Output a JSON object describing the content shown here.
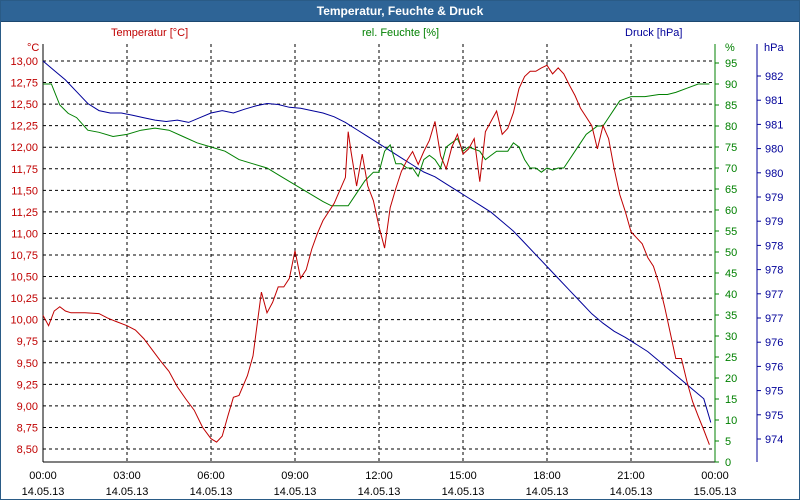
{
  "window": {
    "title": "Temperatur, Feuchte & Druck"
  },
  "chart_data": {
    "type": "line",
    "title": "Temperatur, Feuchte & Druck",
    "colors": {
      "temp": "#c00000",
      "hum": "#008000",
      "press": "#000099",
      "grid": "#000000"
    },
    "x_ticks": [
      {
        "time": "00:00",
        "date": "14.05.13"
      },
      {
        "time": "03:00",
        "date": "14.05.13"
      },
      {
        "time": "06:00",
        "date": "14.05.13"
      },
      {
        "time": "09:00",
        "date": "14.05.13"
      },
      {
        "time": "12:00",
        "date": "14.05.13"
      },
      {
        "time": "15:00",
        "date": "14.05.13"
      },
      {
        "time": "18:00",
        "date": "14.05.13"
      },
      {
        "time": "21:00",
        "date": "14.05.13"
      },
      {
        "time": "00:00",
        "date": "15.05.13"
      }
    ],
    "x_range_hours": [
      0,
      24
    ],
    "axes": {
      "temp": {
        "label": "Temperatur [°C]",
        "unit": "°C",
        "range": [
          8.5,
          13.0
        ],
        "ticks": [
          "13,00",
          "12,75",
          "12,50",
          "12,25",
          "12,00",
          "11,75",
          "11,50",
          "11,25",
          "11,00",
          "10,75",
          "10,50",
          "10,25",
          "10,00",
          "9,75",
          "9,50",
          "9,25",
          "9,00",
          "8,75",
          "8,50"
        ]
      },
      "hum": {
        "label": "rel. Feuchte [%]",
        "unit": "%",
        "range": [
          0,
          95
        ],
        "ticks": [
          "95",
          "90",
          "85",
          "80",
          "75",
          "70",
          "65",
          "60",
          "55",
          "50",
          "45",
          "40",
          "35",
          "30",
          "25",
          "20",
          "15",
          "10",
          "5",
          "0"
        ]
      },
      "press": {
        "label": "Druck [hPa]",
        "unit": "hPa",
        "range": [
          974,
          982
        ],
        "ticks": [
          "982",
          "981",
          "981",
          "980",
          "980",
          "979",
          "979",
          "978",
          "978",
          "977",
          "977",
          "976",
          "976",
          "975",
          "975",
          "974"
        ]
      }
    },
    "series": [
      {
        "name": "Temperatur",
        "unit": "°C",
        "color": "#c00000",
        "points": [
          [
            0,
            10.05
          ],
          [
            0.2,
            9.93
          ],
          [
            0.4,
            10.1
          ],
          [
            0.6,
            10.15
          ],
          [
            0.8,
            10.1
          ],
          [
            1,
            10.08
          ],
          [
            1.5,
            10.08
          ],
          [
            2,
            10.07
          ],
          [
            2.3,
            10.02
          ],
          [
            2.6,
            9.98
          ],
          [
            3,
            9.93
          ],
          [
            3.3,
            9.88
          ],
          [
            3.6,
            9.78
          ],
          [
            3.9,
            9.65
          ],
          [
            4.2,
            9.52
          ],
          [
            4.5,
            9.4
          ],
          [
            4.8,
            9.22
          ],
          [
            5.1,
            9.08
          ],
          [
            5.4,
            8.95
          ],
          [
            5.7,
            8.75
          ],
          [
            6,
            8.62
          ],
          [
            6.2,
            8.58
          ],
          [
            6.4,
            8.65
          ],
          [
            6.6,
            8.88
          ],
          [
            6.8,
            9.1
          ],
          [
            7,
            9.12
          ],
          [
            7.3,
            9.35
          ],
          [
            7.5,
            9.58
          ],
          [
            7.8,
            10.32
          ],
          [
            8,
            10.08
          ],
          [
            8.2,
            10.2
          ],
          [
            8.4,
            10.38
          ],
          [
            8.6,
            10.38
          ],
          [
            8.8,
            10.48
          ],
          [
            9,
            10.8
          ],
          [
            9.2,
            10.48
          ],
          [
            9.4,
            10.58
          ],
          [
            9.6,
            10.82
          ],
          [
            9.8,
            11.0
          ],
          [
            10,
            11.15
          ],
          [
            10.2,
            11.25
          ],
          [
            10.4,
            11.35
          ],
          [
            10.6,
            11.5
          ],
          [
            10.8,
            11.65
          ],
          [
            10.9,
            12.18
          ],
          [
            11,
            11.95
          ],
          [
            11.2,
            11.55
          ],
          [
            11.4,
            11.92
          ],
          [
            11.6,
            11.55
          ],
          [
            11.8,
            11.38
          ],
          [
            12,
            11.08
          ],
          [
            12.2,
            10.83
          ],
          [
            12.4,
            11.3
          ],
          [
            12.6,
            11.52
          ],
          [
            12.8,
            11.72
          ],
          [
            13,
            11.85
          ],
          [
            13.2,
            11.95
          ],
          [
            13.4,
            11.8
          ],
          [
            13.6,
            11.95
          ],
          [
            13.8,
            12.08
          ],
          [
            14,
            12.3
          ],
          [
            14.2,
            11.9
          ],
          [
            14.4,
            11.75
          ],
          [
            14.6,
            12.0
          ],
          [
            14.8,
            12.15
          ],
          [
            15,
            11.92
          ],
          [
            15.2,
            11.98
          ],
          [
            15.4,
            12.1
          ],
          [
            15.6,
            11.6
          ],
          [
            15.8,
            12.18
          ],
          [
            16,
            12.3
          ],
          [
            16.2,
            12.42
          ],
          [
            16.4,
            12.15
          ],
          [
            16.6,
            12.22
          ],
          [
            16.8,
            12.4
          ],
          [
            17,
            12.68
          ],
          [
            17.2,
            12.82
          ],
          [
            17.4,
            12.88
          ],
          [
            17.6,
            12.88
          ],
          [
            17.8,
            12.92
          ],
          [
            18,
            12.95
          ],
          [
            18.2,
            12.85
          ],
          [
            18.4,
            12.92
          ],
          [
            18.6,
            12.85
          ],
          [
            18.8,
            12.72
          ],
          [
            19,
            12.6
          ],
          [
            19.2,
            12.45
          ],
          [
            19.4,
            12.35
          ],
          [
            19.6,
            12.25
          ],
          [
            19.8,
            11.98
          ],
          [
            20,
            12.25
          ],
          [
            20.2,
            12.1
          ],
          [
            20.4,
            11.75
          ],
          [
            20.6,
            11.45
          ],
          [
            20.8,
            11.25
          ],
          [
            21,
            11.02
          ],
          [
            21.2,
            10.95
          ],
          [
            21.4,
            10.88
          ],
          [
            21.6,
            10.72
          ],
          [
            21.8,
            10.62
          ],
          [
            22,
            10.42
          ],
          [
            22.2,
            10.15
          ],
          [
            22.4,
            9.85
          ],
          [
            22.6,
            9.55
          ],
          [
            22.8,
            9.55
          ],
          [
            23,
            9.28
          ],
          [
            23.2,
            9.05
          ],
          [
            23.4,
            8.88
          ],
          [
            23.6,
            8.72
          ],
          [
            23.8,
            8.55
          ]
        ]
      },
      {
        "name": "rel. Feuchte",
        "unit": "%",
        "color": "#008000",
        "points": [
          [
            0,
            90
          ],
          [
            0.3,
            90
          ],
          [
            0.6,
            85
          ],
          [
            0.9,
            83
          ],
          [
            1.2,
            82
          ],
          [
            1.6,
            79
          ],
          [
            2,
            78.5
          ],
          [
            2.5,
            77.5
          ],
          [
            3,
            78
          ],
          [
            3.5,
            79
          ],
          [
            4,
            79.5
          ],
          [
            4.5,
            79
          ],
          [
            5,
            77.5
          ],
          [
            5.5,
            76
          ],
          [
            6,
            75
          ],
          [
            6.5,
            74
          ],
          [
            7,
            72
          ],
          [
            7.5,
            71
          ],
          [
            8,
            70
          ],
          [
            8.5,
            68
          ],
          [
            9,
            66
          ],
          [
            9.5,
            64
          ],
          [
            10,
            62
          ],
          [
            10.3,
            61
          ],
          [
            10.6,
            61
          ],
          [
            10.9,
            61
          ],
          [
            11.2,
            64
          ],
          [
            11.5,
            67
          ],
          [
            11.8,
            69
          ],
          [
            12,
            69
          ],
          [
            12.2,
            74
          ],
          [
            12.4,
            75.5
          ],
          [
            12.6,
            71
          ],
          [
            12.8,
            71
          ],
          [
            13,
            70
          ],
          [
            13.2,
            70
          ],
          [
            13.4,
            68
          ],
          [
            13.6,
            72
          ],
          [
            13.8,
            73
          ],
          [
            14,
            72
          ],
          [
            14.2,
            70
          ],
          [
            14.4,
            75
          ],
          [
            14.6,
            76
          ],
          [
            14.8,
            77
          ],
          [
            15,
            74
          ],
          [
            15.2,
            75
          ],
          [
            15.4,
            74.5
          ],
          [
            15.6,
            74
          ],
          [
            15.8,
            72
          ],
          [
            16,
            73
          ],
          [
            16.2,
            74
          ],
          [
            16.4,
            74
          ],
          [
            16.6,
            74
          ],
          [
            16.8,
            76
          ],
          [
            17,
            75
          ],
          [
            17.2,
            72
          ],
          [
            17.4,
            70
          ],
          [
            17.6,
            70
          ],
          [
            17.8,
            69
          ],
          [
            18,
            70
          ],
          [
            18.2,
            69.5
          ],
          [
            18.4,
            70
          ],
          [
            18.6,
            70
          ],
          [
            18.8,
            72
          ],
          [
            19,
            74
          ],
          [
            19.2,
            76
          ],
          [
            19.4,
            78
          ],
          [
            19.6,
            79
          ],
          [
            19.8,
            80
          ],
          [
            20,
            80
          ],
          [
            20.2,
            82
          ],
          [
            20.4,
            84
          ],
          [
            20.6,
            86
          ],
          [
            20.8,
            86.5
          ],
          [
            21,
            87
          ],
          [
            21.5,
            87
          ],
          [
            22,
            87.5
          ],
          [
            22.3,
            87.5
          ],
          [
            22.6,
            88
          ],
          [
            23,
            89
          ],
          [
            23.4,
            90
          ],
          [
            23.8,
            90
          ]
        ]
      },
      {
        "name": "Druck",
        "unit": "hPa",
        "color": "#000099",
        "points": [
          [
            0,
            982.0
          ],
          [
            0.4,
            981.8
          ],
          [
            0.8,
            981.6
          ],
          [
            1.2,
            981.35
          ],
          [
            1.6,
            981.1
          ],
          [
            2,
            980.95
          ],
          [
            2.4,
            980.9
          ],
          [
            2.8,
            980.9
          ],
          [
            3.2,
            980.85
          ],
          [
            3.6,
            980.8
          ],
          [
            4,
            980.75
          ],
          [
            4.4,
            980.72
          ],
          [
            4.8,
            980.75
          ],
          [
            5.2,
            980.7
          ],
          [
            5.6,
            980.8
          ],
          [
            6,
            980.9
          ],
          [
            6.4,
            980.95
          ],
          [
            6.8,
            980.9
          ],
          [
            7.2,
            980.98
          ],
          [
            7.6,
            981.05
          ],
          [
            8,
            981.1
          ],
          [
            8.4,
            981.08
          ],
          [
            8.8,
            981.02
          ],
          [
            9.2,
            981.0
          ],
          [
            9.6,
            980.95
          ],
          [
            10,
            980.9
          ],
          [
            10.4,
            980.82
          ],
          [
            10.8,
            980.7
          ],
          [
            11.2,
            980.55
          ],
          [
            11.6,
            980.4
          ],
          [
            12,
            980.25
          ],
          [
            12.4,
            980.1
          ],
          [
            12.8,
            979.95
          ],
          [
            13.2,
            979.8
          ],
          [
            13.6,
            979.65
          ],
          [
            14,
            979.55
          ],
          [
            14.4,
            979.4
          ],
          [
            14.8,
            979.25
          ],
          [
            15.2,
            979.1
          ],
          [
            15.6,
            978.95
          ],
          [
            16,
            978.8
          ],
          [
            16.4,
            978.6
          ],
          [
            16.8,
            978.4
          ],
          [
            17.2,
            978.15
          ],
          [
            17.6,
            977.9
          ],
          [
            18,
            977.65
          ],
          [
            18.4,
            977.4
          ],
          [
            18.8,
            977.15
          ],
          [
            19.2,
            976.9
          ],
          [
            19.6,
            976.65
          ],
          [
            20,
            976.45
          ],
          [
            20.4,
            976.28
          ],
          [
            20.8,
            976.15
          ],
          [
            21.2,
            976.0
          ],
          [
            21.6,
            975.85
          ],
          [
            22,
            975.65
          ],
          [
            22.4,
            975.45
          ],
          [
            22.8,
            975.25
          ],
          [
            23.2,
            975.05
          ],
          [
            23.6,
            974.85
          ],
          [
            23.85,
            974.35
          ]
        ]
      }
    ]
  }
}
